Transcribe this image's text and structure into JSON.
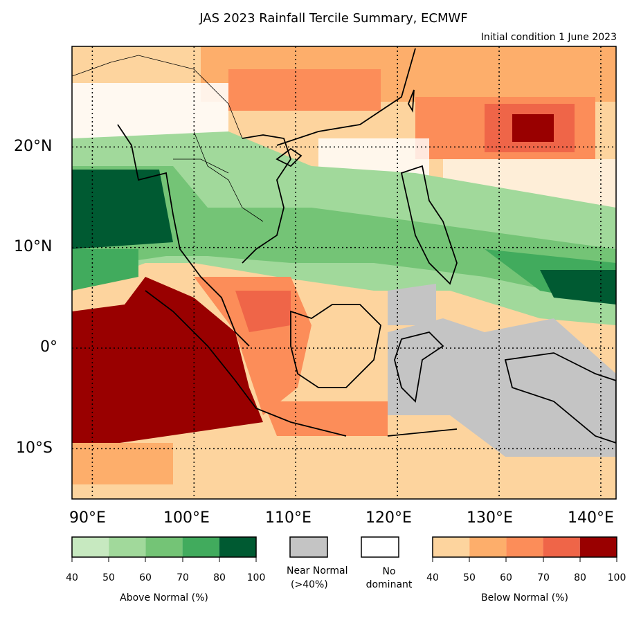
{
  "title": "JAS 2023 Rainfall Tercile Summary, ECMWF",
  "subtitle": "Initial condition 1 June 2023",
  "lat_labels": [
    "20°N",
    "10°N",
    "0°",
    "10°S"
  ],
  "lon_labels": [
    "90°E",
    "100°E",
    "110°E",
    "120°E",
    "130°E",
    "140°E"
  ],
  "legend": {
    "above": {
      "label": "Above Normal (%)",
      "ticks": [
        "40",
        "50",
        "60",
        "70",
        "80",
        "100"
      ],
      "colors": [
        "#c7e9c0",
        "#a1d99b",
        "#74c476",
        "#41ab5d",
        "#005a32"
      ]
    },
    "near": {
      "label": "Near Normal",
      "label2": "(>40%)",
      "color": "#c4c4c4"
    },
    "nodom": {
      "label": "No",
      "label2": "dominant",
      "color": "#ffffff"
    },
    "below": {
      "label": "Below Normal (%)",
      "ticks": [
        "40",
        "50",
        "60",
        "70",
        "80",
        "100"
      ],
      "colors": [
        "#fdd49e",
        "#fdae6b",
        "#fc8d59",
        "#ef6548",
        "#990000"
      ]
    }
  },
  "map_data": {
    "extent": {
      "lon": [
        88,
        141.5
      ],
      "lat": [
        -15,
        30
      ]
    },
    "gridlines_lon": [
      90,
      100,
      110,
      120,
      130,
      140
    ],
    "gridlines_lat": [
      20,
      10,
      0,
      -10
    ]
  }
}
